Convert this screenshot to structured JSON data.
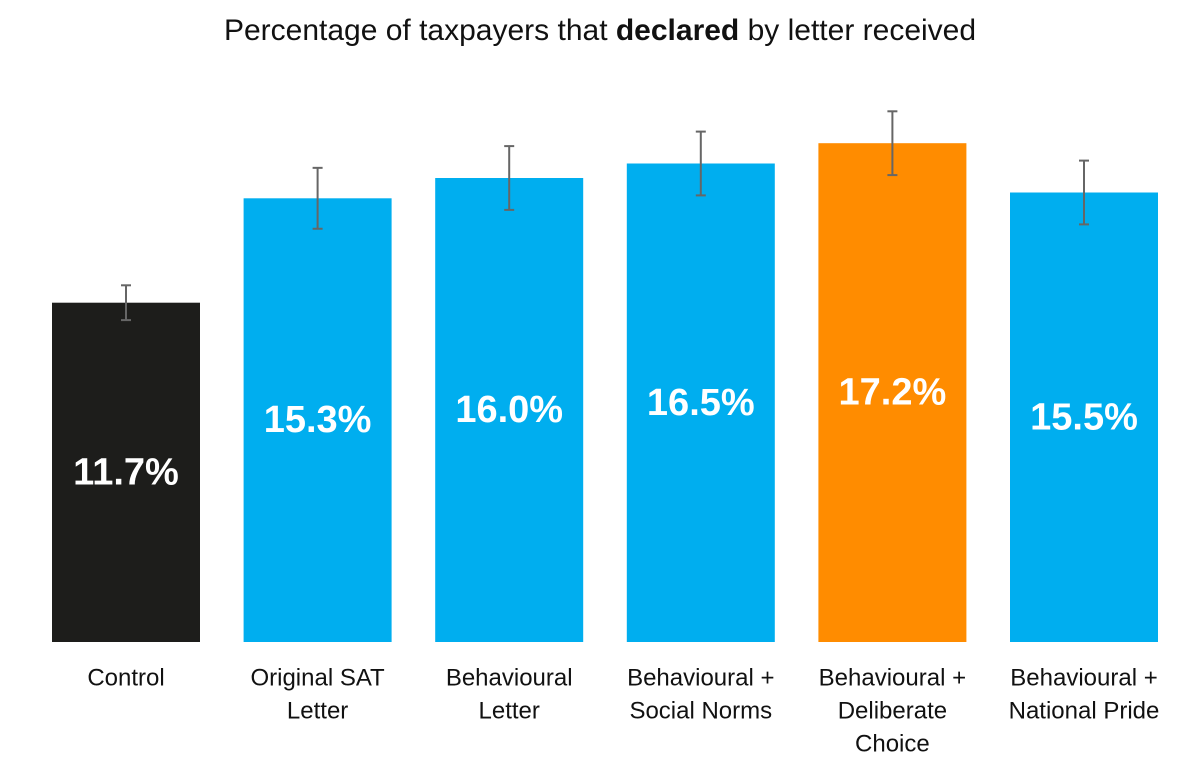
{
  "chart_data": {
    "type": "bar",
    "title": [
      "Percentage of taxpayers that ",
      "declared",
      " by letter received"
    ],
    "categories": [
      [
        "Control"
      ],
      [
        "Original SAT",
        "Letter"
      ],
      [
        "Behavioural",
        "Letter"
      ],
      [
        "Behavioural +",
        "Social Norms"
      ],
      [
        "Behavioural +",
        "Deliberate",
        "Choice"
      ],
      [
        "Behavioural +",
        "National Pride"
      ]
    ],
    "values": [
      11.7,
      15.3,
      16.0,
      16.5,
      17.2,
      15.5
    ],
    "value_labels": [
      "11.7%",
      "15.3%",
      "16.0%",
      "16.5%",
      "17.2%",
      "15.5%"
    ],
    "errors": [
      0.6,
      1.05,
      1.1,
      1.1,
      1.1,
      1.1
    ],
    "colors": [
      "#1d1d1b",
      "#00aeef",
      "#00aeef",
      "#00aeef",
      "#ff8c00",
      "#00aeef"
    ],
    "error_color": "#666666"
  }
}
